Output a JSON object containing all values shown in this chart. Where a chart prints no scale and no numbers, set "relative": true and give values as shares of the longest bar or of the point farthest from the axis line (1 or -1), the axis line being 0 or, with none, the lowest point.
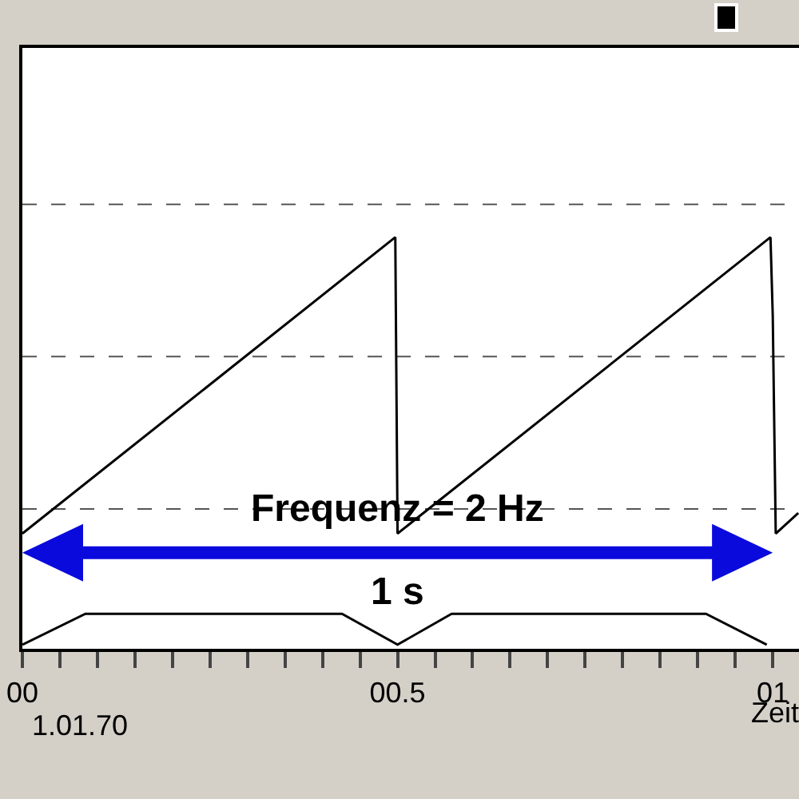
{
  "chart_data": {
    "type": "line",
    "relative": true,
    "xlabel": "Zeit",
    "xlim": [
      0,
      1.035
    ],
    "xticks": [
      {
        "value": 0,
        "label": "00"
      },
      {
        "value": 0.05,
        "label": null
      },
      {
        "value": 0.1,
        "label": null
      },
      {
        "value": 0.15,
        "label": null
      },
      {
        "value": 0.2,
        "label": null
      },
      {
        "value": 0.25,
        "label": null
      },
      {
        "value": 0.3,
        "label": null
      },
      {
        "value": 0.35,
        "label": null
      },
      {
        "value": 0.4,
        "label": null
      },
      {
        "value": 0.45,
        "label": null
      },
      {
        "value": 0.5,
        "label": "00.5"
      },
      {
        "value": 0.55,
        "label": null
      },
      {
        "value": 0.6,
        "label": null
      },
      {
        "value": 0.65,
        "label": null
      },
      {
        "value": 0.7,
        "label": null
      },
      {
        "value": 0.75,
        "label": null
      },
      {
        "value": 0.8,
        "label": null
      },
      {
        "value": 0.85,
        "label": null
      },
      {
        "value": 0.9,
        "label": null
      },
      {
        "value": 0.95,
        "label": null
      },
      {
        "value": 1,
        "label": "01"
      }
    ],
    "series": [
      {
        "color": "#000000",
        "x": [
          0,
          0.497,
          0.5,
          0.997,
          1.0,
          1.004,
          1.034
        ],
        "values": [
          0.28,
          1,
          0.28,
          1,
          0.81,
          0.28,
          0.33
        ]
      },
      {
        "color": "#000000",
        "x": [
          0,
          0.084,
          0.426,
          0.5,
          0.572,
          0.911,
          0.992
        ],
        "values": [
          0.01,
          0.085,
          0.085,
          0.01,
          0.085,
          0.085,
          0.01
        ]
      }
    ],
    "ref_lines": [
      {
        "axis": "y",
        "value": 1.08,
        "color": "#555555",
        "line_style": "dashed"
      },
      {
        "axis": "y",
        "value": 0.71,
        "color": "#555555",
        "line_style": "dashed"
      },
      {
        "axis": "y",
        "value": 0.34,
        "color": "#555555",
        "line_style": "dashed"
      }
    ],
    "annotations": [
      "Frequenz = 2 Hz",
      "1 s",
      "1.01.70"
    ],
    "line_style": "solid"
  }
}
